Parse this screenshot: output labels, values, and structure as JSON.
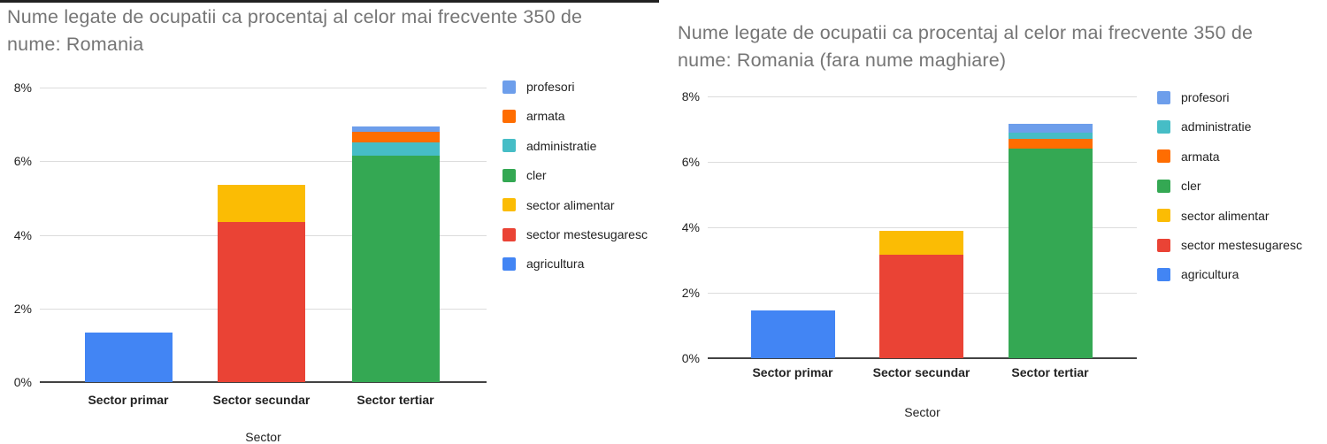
{
  "ui_colors": {
    "background": "#ffffff",
    "title_text": "#757575",
    "axis_text": "#222222",
    "gridline": "#dcdcdc",
    "axis_line": "#424242",
    "top_border": "#212121"
  },
  "chart_data": [
    {
      "type": "bar",
      "stacked": true,
      "title": "Nume legate de ocupatii ca procentaj al celor mai frecvente 350 de nume: Romania",
      "xlabel": "Sector",
      "ylabel": "",
      "ylim": [
        0,
        8
      ],
      "y_tick_labels": [
        "0%",
        "2%",
        "4%",
        "6%",
        "8%"
      ],
      "grid": true,
      "legend_position": "right",
      "categories": [
        "Sector primar",
        "Sector secundar",
        "Sector tertiar"
      ],
      "legend": [
        "profesori",
        "armata",
        "administratie",
        "cler",
        "sector alimentar",
        "sector mestesugaresc",
        "agricultura"
      ],
      "series": [
        {
          "name": "agricultura",
          "color": "#4285F4",
          "values": [
            1.35,
            0,
            0
          ]
        },
        {
          "name": "sector mestesugaresc",
          "color": "#EA4335",
          "values": [
            0,
            4.35,
            0
          ]
        },
        {
          "name": "sector alimentar",
          "color": "#FBBC04",
          "values": [
            0,
            1.0,
            0
          ]
        },
        {
          "name": "cler",
          "color": "#34A853",
          "values": [
            0,
            0,
            6.15
          ]
        },
        {
          "name": "administratie",
          "color": "#46BDC6",
          "values": [
            0,
            0,
            0.35
          ]
        },
        {
          "name": "armata",
          "color": "#FF6D01",
          "values": [
            0,
            0,
            0.3
          ]
        },
        {
          "name": "profesori",
          "color": "#6D9EEB",
          "values": [
            0,
            0,
            0.15
          ]
        }
      ]
    },
    {
      "type": "bar",
      "stacked": true,
      "title": "Nume legate de ocupatii ca procentaj al celor mai frecvente 350 de nume: Romania (fara nume maghiare)",
      "xlabel": "Sector",
      "ylabel": "",
      "ylim": [
        0,
        8
      ],
      "y_tick_labels": [
        "0%",
        "2%",
        "4%",
        "6%",
        "8%"
      ],
      "grid": true,
      "legend_position": "right",
      "categories": [
        "Sector primar",
        "Sector secundar",
        "Sector tertiar"
      ],
      "legend": [
        "profesori",
        "administratie",
        "armata",
        "cler",
        "sector alimentar",
        "sector mestesugaresc",
        "agricultura"
      ],
      "series": [
        {
          "name": "agricultura",
          "color": "#4285F4",
          "values": [
            1.45,
            0,
            0
          ]
        },
        {
          "name": "sector mestesugaresc",
          "color": "#EA4335",
          "values": [
            0,
            3.15,
            0
          ]
        },
        {
          "name": "sector alimentar",
          "color": "#FBBC04",
          "values": [
            0,
            0.75,
            0
          ]
        },
        {
          "name": "cler",
          "color": "#34A853",
          "values": [
            0,
            0,
            6.4
          ]
        },
        {
          "name": "armata",
          "color": "#FF6D01",
          "values": [
            0,
            0,
            0.3
          ]
        },
        {
          "name": "administratie",
          "color": "#46BDC6",
          "values": [
            0,
            0,
            0.2
          ]
        },
        {
          "name": "profesori",
          "color": "#6D9EEB",
          "values": [
            0,
            0,
            0.25
          ]
        }
      ]
    }
  ]
}
